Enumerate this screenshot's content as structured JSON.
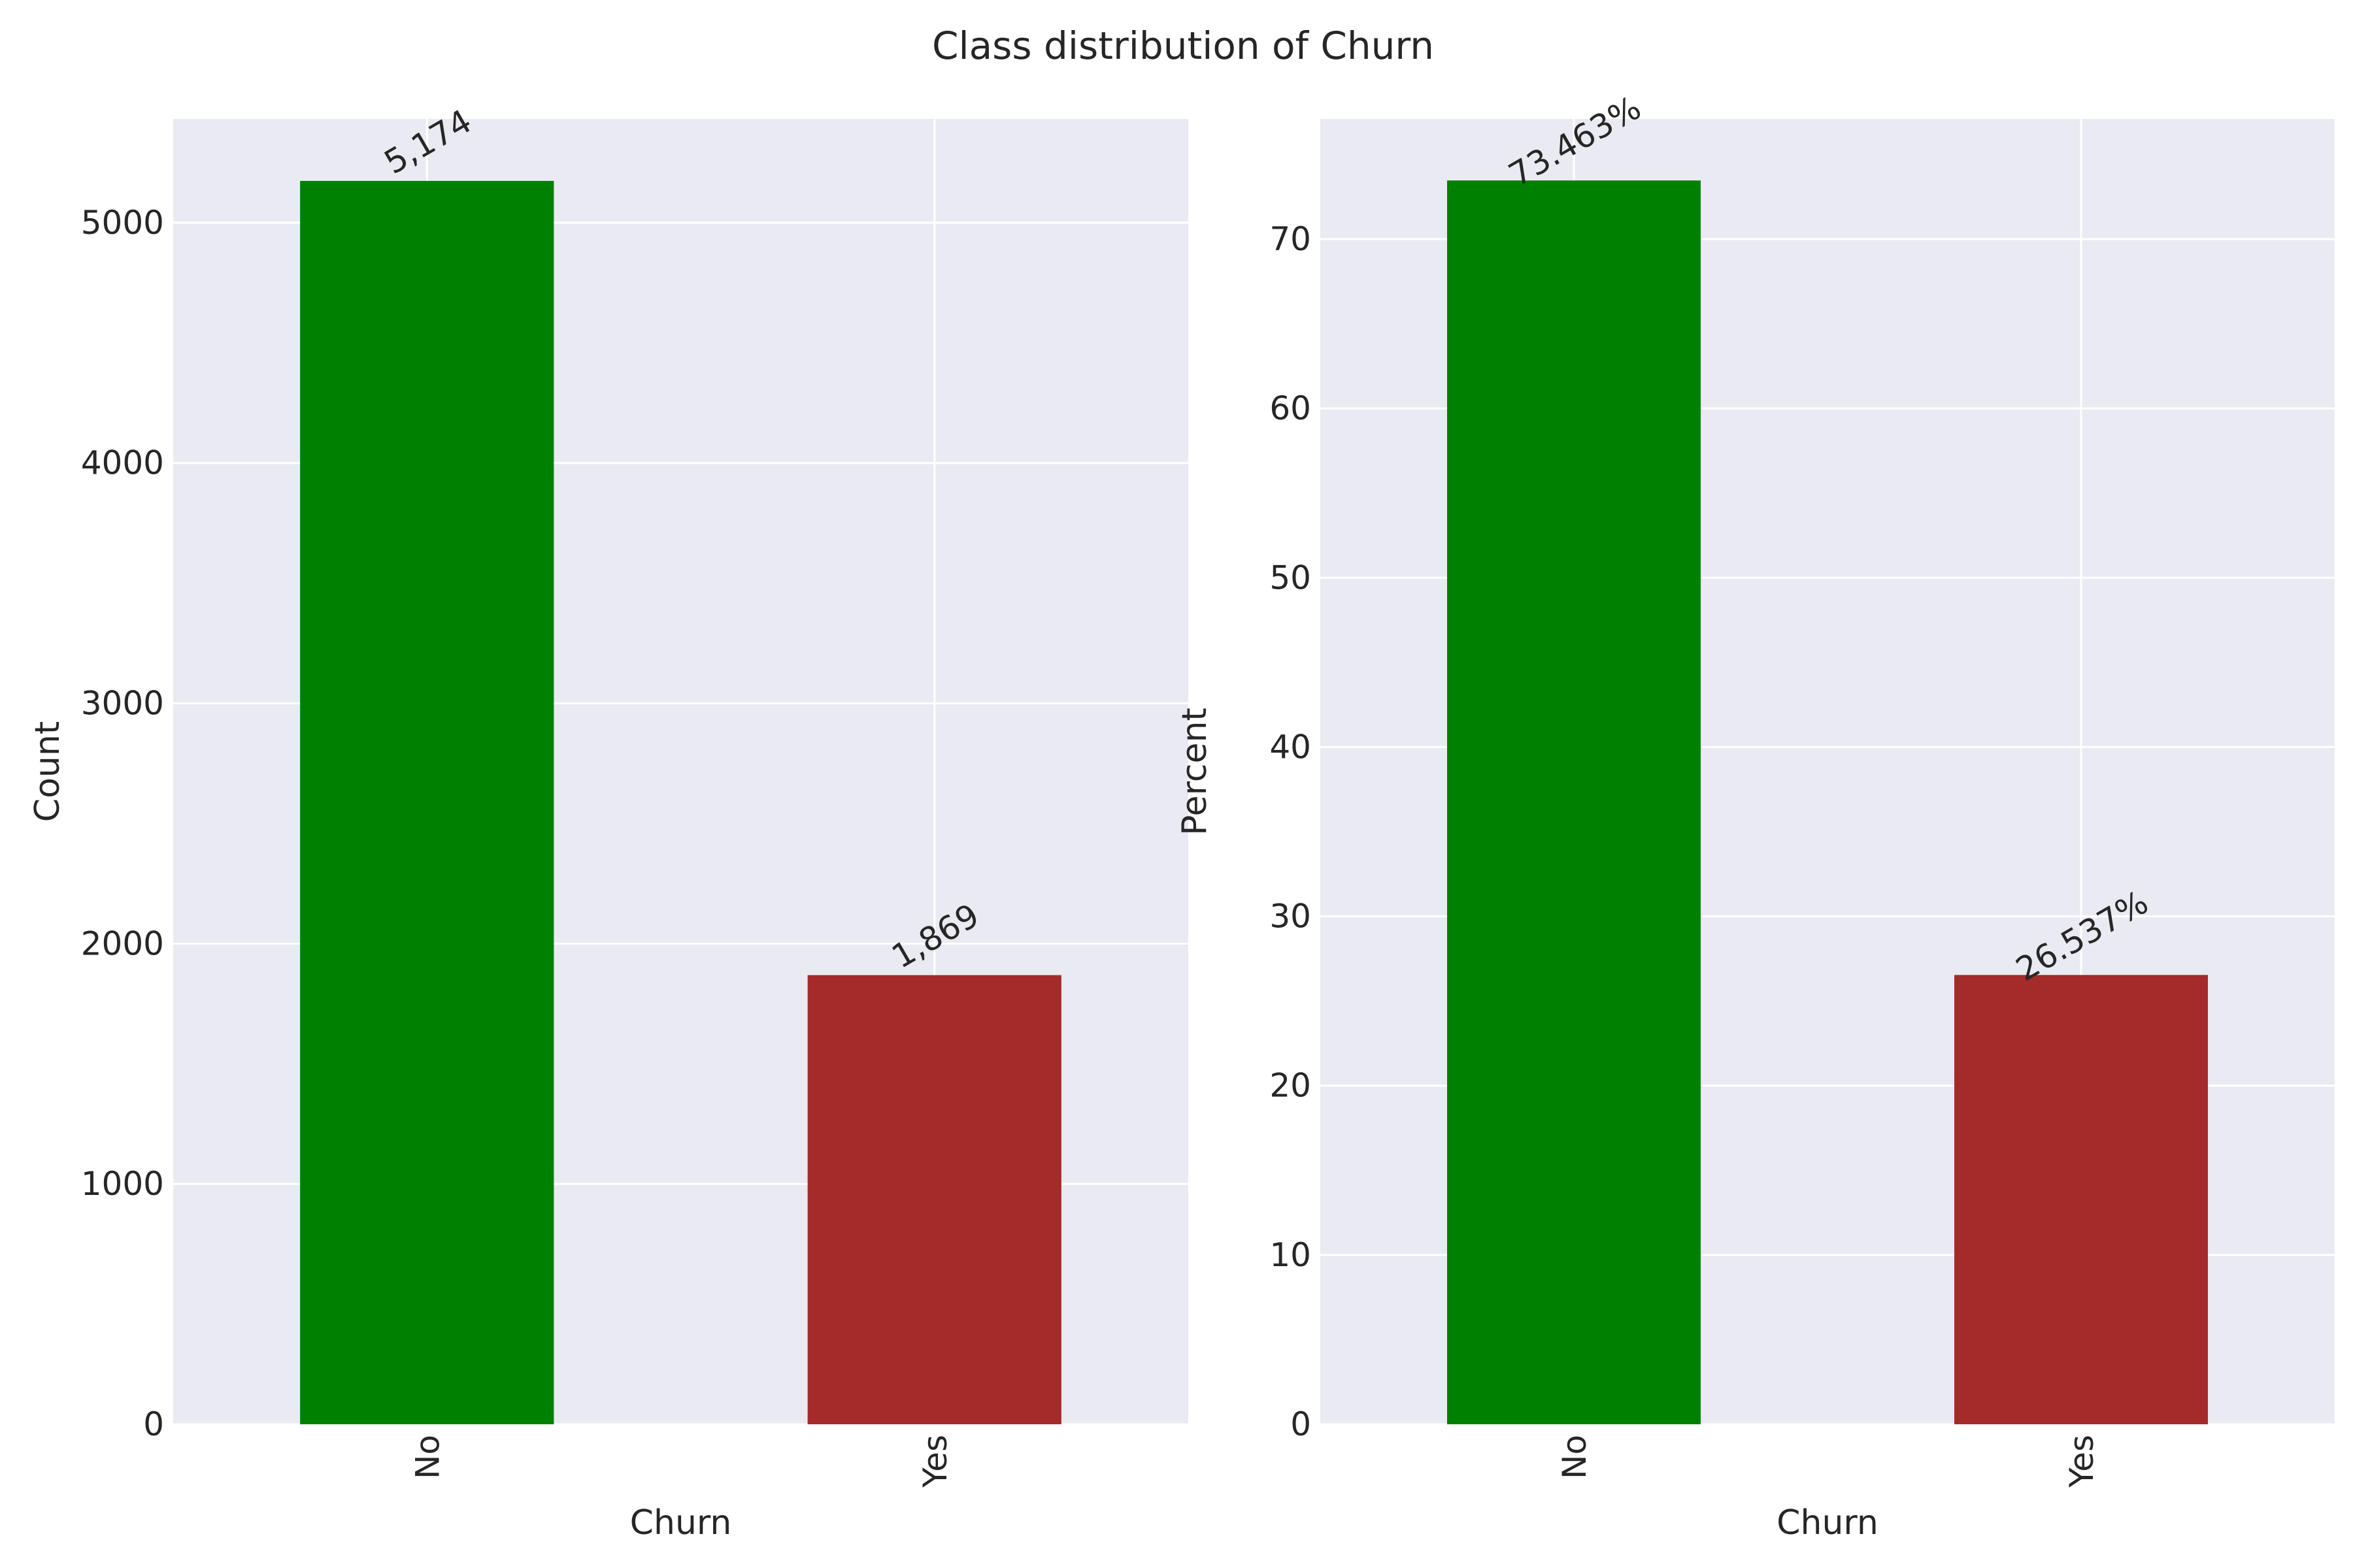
{
  "figure": {
    "title": "Class distribution of Churn",
    "background": "#ffffff",
    "axes_background": "#eaeaf2",
    "grid_color": "#ffffff"
  },
  "chart_data": [
    {
      "type": "bar",
      "categories": [
        "No",
        "Yes"
      ],
      "values": [
        5174,
        1869
      ],
      "data_labels": [
        "5,174",
        "1,869"
      ],
      "colors": [
        "#008000",
        "#a52a2a"
      ],
      "xlabel": "Churn",
      "ylabel": "Count",
      "ylim": [
        0,
        5432
      ],
      "yticks": [
        0,
        1000,
        2000,
        3000,
        4000,
        5000
      ],
      "grid": true
    },
    {
      "type": "bar",
      "categories": [
        "No",
        "Yes"
      ],
      "values": [
        73.463,
        26.537
      ],
      "data_labels": [
        "73.463%",
        "26.537%"
      ],
      "colors": [
        "#008000",
        "#a52a2a"
      ],
      "xlabel": "Churn",
      "ylabel": "Percent",
      "ylim": [
        0,
        77.1
      ],
      "yticks": [
        0,
        10,
        20,
        30,
        40,
        50,
        60,
        70
      ],
      "grid": true
    }
  ]
}
